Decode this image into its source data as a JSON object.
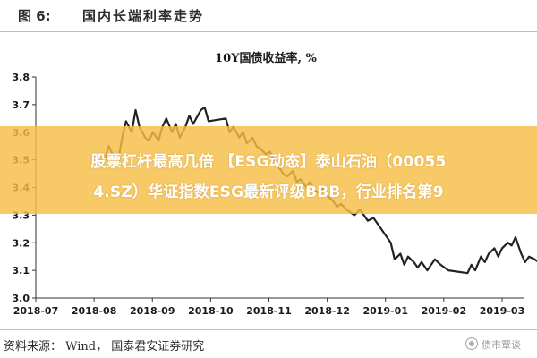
{
  "figure": {
    "label": "图 6:",
    "title": "国内长端利率走势"
  },
  "chart_data": {
    "type": "line",
    "title": "10Y国债收益率, %",
    "xlabel": "",
    "ylabel": "",
    "ylim": [
      3.0,
      3.8
    ],
    "yticks": [
      "3.0",
      "3.1",
      "3.2",
      "3.3",
      "3.4",
      "3.5",
      "3.6",
      "3.7",
      "3.8"
    ],
    "xticks": [
      "2018-07",
      "2018-08",
      "2018-09",
      "2018-10",
      "2018-11",
      "2018-12",
      "2019-01",
      "2019-02",
      "2019-03"
    ],
    "grid": false,
    "legend": "none",
    "color": "#222222",
    "x": [
      "2018-08-06",
      "2018-08-08",
      "2018-08-10",
      "2018-08-13",
      "2018-08-15",
      "2018-08-17",
      "2018-08-20",
      "2018-08-22",
      "2018-08-24",
      "2018-08-27",
      "2018-08-29",
      "2018-08-31",
      "2018-09-03",
      "2018-09-05",
      "2018-09-07",
      "2018-09-10",
      "2018-09-12",
      "2018-09-14",
      "2018-09-17",
      "2018-09-19",
      "2018-09-21",
      "2018-09-25",
      "2018-09-27",
      "2018-09-29",
      "2018-10-08",
      "2018-10-10",
      "2018-10-12",
      "2018-10-15",
      "2018-10-17",
      "2018-10-19",
      "2018-10-22",
      "2018-10-24",
      "2018-10-26",
      "2018-10-29",
      "2018-10-31",
      "2018-11-02",
      "2018-11-05",
      "2018-11-07",
      "2018-11-09",
      "2018-11-12",
      "2018-11-14",
      "2018-11-16",
      "2018-11-19",
      "2018-11-21",
      "2018-11-23",
      "2018-11-26",
      "2018-11-28",
      "2018-11-30",
      "2018-12-03",
      "2018-12-05",
      "2018-12-07",
      "2018-12-10",
      "2018-12-12",
      "2018-12-14",
      "2018-12-17",
      "2018-12-19",
      "2018-12-21",
      "2018-12-24",
      "2018-12-26",
      "2018-12-28",
      "2019-01-02",
      "2019-01-04",
      "2019-01-07",
      "2019-01-09",
      "2019-01-11",
      "2019-01-14",
      "2019-01-16",
      "2019-01-18",
      "2019-01-21",
      "2019-01-23",
      "2019-01-25",
      "2019-01-28",
      "2019-01-30",
      "2019-02-01",
      "2019-02-11",
      "2019-02-13",
      "2019-02-15",
      "2019-02-18",
      "2019-02-20",
      "2019-02-22",
      "2019-02-25",
      "2019-02-27",
      "2019-03-01",
      "2019-03-04",
      "2019-03-06",
      "2019-03-08",
      "2019-03-11",
      "2019-03-13",
      "2019-03-15",
      "2019-03-18",
      "2019-03-20",
      "2019-03-22"
    ],
    "values": [
      3.5,
      3.55,
      3.52,
      3.5,
      3.58,
      3.64,
      3.6,
      3.68,
      3.62,
      3.58,
      3.57,
      3.6,
      3.57,
      3.62,
      3.65,
      3.6,
      3.63,
      3.58,
      3.62,
      3.66,
      3.63,
      3.68,
      3.69,
      3.64,
      3.65,
      3.6,
      3.62,
      3.58,
      3.6,
      3.56,
      3.58,
      3.55,
      3.54,
      3.52,
      3.53,
      3.5,
      3.47,
      3.45,
      3.44,
      3.46,
      3.42,
      3.43,
      3.4,
      3.42,
      3.39,
      3.38,
      3.4,
      3.37,
      3.35,
      3.33,
      3.34,
      3.32,
      3.31,
      3.3,
      3.32,
      3.3,
      3.28,
      3.29,
      3.27,
      3.25,
      3.2,
      3.14,
      3.16,
      3.12,
      3.15,
      3.13,
      3.11,
      3.13,
      3.1,
      3.12,
      3.14,
      3.12,
      3.11,
      3.1,
      3.09,
      3.12,
      3.1,
      3.15,
      3.13,
      3.16,
      3.18,
      3.15,
      3.18,
      3.2,
      3.19,
      3.22,
      3.16,
      3.13,
      3.15,
      3.14,
      3.13,
      3.14
    ]
  },
  "overlay": {
    "line1": "股票杠杆最高几倍 【ESG动态】泰山石油（00055",
    "line2": "4.SZ）华证指数ESG最新评级BBB，行业排名第9",
    "color": "#f7be46"
  },
  "footer": {
    "source": "资料来源：  Wind，  国泰君安证券研究",
    "watermark": "债市覃谈",
    "watermark_icon": "wechat-logo-icon"
  }
}
